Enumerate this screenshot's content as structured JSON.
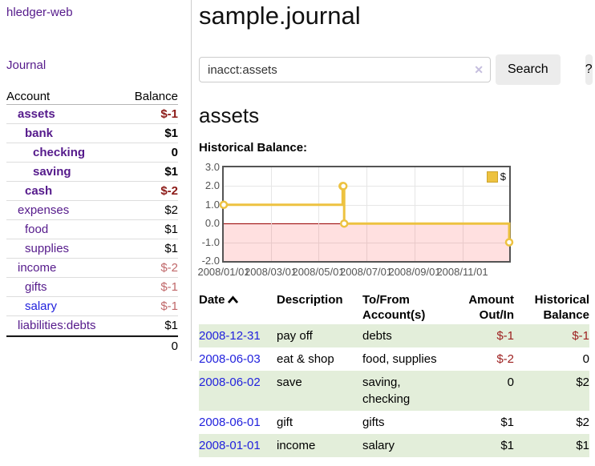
{
  "colors": {
    "link_blue": "#2222dd",
    "link_visited_purple": "#551a8b",
    "negative_strong": "#8c1a17",
    "negative_muted": "#c0686a",
    "negative_table": "#9d1f1f",
    "row_stripe_green": "#e3eeda",
    "chart_line_yellow": "#edc240",
    "chart_zero_line": "#8b0000",
    "chart_negative_fill": "rgba(255,0,0,0.12)",
    "chart_grid": "#e6e6e6",
    "chart_border": "#545454",
    "button_bg": "#ececec",
    "clear_icon_color": "#c5bede"
  },
  "sidebar": {
    "app_title": "hledger-web",
    "journal_link": "Journal",
    "accounts_table": {
      "headers": {
        "account": "Account",
        "balance": "Balance"
      },
      "rows": [
        {
          "name": "assets",
          "depth": 1,
          "balance": "$-1",
          "bold": true,
          "neg": "strong"
        },
        {
          "name": "bank",
          "depth": 2,
          "balance": "$1",
          "bold": true
        },
        {
          "name": "checking",
          "depth": 3,
          "balance": "0",
          "bold": true
        },
        {
          "name": "saving",
          "depth": 3,
          "balance": "$1",
          "bold": true
        },
        {
          "name": "cash",
          "depth": 2,
          "balance": "$-2",
          "bold": true,
          "neg": "strong"
        },
        {
          "name": "expenses",
          "depth": 1,
          "balance": "$2"
        },
        {
          "name": "food",
          "depth": 2,
          "balance": "$1"
        },
        {
          "name": "supplies",
          "depth": 2,
          "balance": "$1"
        },
        {
          "name": "income",
          "depth": 1,
          "balance": "$-2",
          "neg": "light"
        },
        {
          "name": "gifts",
          "depth": 2,
          "balance": "$-1",
          "neg": "light"
        },
        {
          "name": "salary",
          "depth": 2,
          "balance": "$-1",
          "neg": "light",
          "link_color": "blue"
        },
        {
          "name": "liabilities:debts",
          "depth": 1,
          "balance": "$1"
        }
      ],
      "total": "0"
    }
  },
  "main": {
    "title": "sample.journal",
    "search": {
      "value": "inacct:assets",
      "clear_icon": "✕",
      "search_label": "Search",
      "help_label": "?"
    },
    "account_heading": "assets",
    "chart_heading": "Historical Balance:",
    "register_table": {
      "headers": {
        "date": "Date",
        "description": "Description",
        "accounts": "To/From Account(s)",
        "amount": "Amount Out/In",
        "balance": "Historical Balance"
      },
      "rows": [
        {
          "date": "2008-12-31",
          "description": "pay off",
          "accounts": "debts",
          "amount": "$-1",
          "amount_neg": true,
          "balance": "$-1",
          "balance_neg": true
        },
        {
          "date": "2008-06-03",
          "description": "eat & shop",
          "accounts": "food, supplies",
          "amount": "$-2",
          "amount_neg": true,
          "balance": "0",
          "balance_neg": false
        },
        {
          "date": "2008-06-02",
          "description": "save",
          "accounts": "saving, checking",
          "amount": "0",
          "amount_neg": false,
          "balance": "$2",
          "balance_neg": false
        },
        {
          "date": "2008-06-01",
          "description": "gift",
          "accounts": "gifts",
          "amount": "$1",
          "amount_neg": false,
          "balance": "$2",
          "balance_neg": false
        },
        {
          "date": "2008-01-01",
          "description": "income",
          "accounts": "salary",
          "amount": "$1",
          "amount_neg": false,
          "balance": "$1",
          "balance_neg": false
        }
      ]
    }
  },
  "chart_data": {
    "type": "line",
    "title": "Historical Balance",
    "line_style": "step",
    "legend_position": "top-right",
    "negative_region_highlight": true,
    "series": [
      {
        "name": "$",
        "color": "#edc240",
        "points": [
          {
            "date": "2008-01-01",
            "day": 0,
            "value": 1
          },
          {
            "date": "2008-06-01",
            "day": 152,
            "value": 2
          },
          {
            "date": "2008-06-02",
            "day": 153,
            "value": 2
          },
          {
            "date": "2008-06-03",
            "day": 154,
            "value": 0
          },
          {
            "date": "2008-12-31",
            "day": 365,
            "value": -1
          }
        ]
      }
    ],
    "x_axis": {
      "min_day": 0,
      "max_day": 365,
      "ticks": [
        {
          "day": 0,
          "label": "2008/01/01"
        },
        {
          "day": 60,
          "label": "2008/03/01"
        },
        {
          "day": 121,
          "label": "2008/05/01"
        },
        {
          "day": 182,
          "label": "2008/07/01"
        },
        {
          "day": 244,
          "label": "2008/09/01"
        },
        {
          "day": 305,
          "label": "2008/11/01"
        }
      ]
    },
    "y_axis": {
      "min": -2,
      "max": 3,
      "ticks": [
        {
          "value": 3,
          "label": "3.0"
        },
        {
          "value": 2,
          "label": "2.0"
        },
        {
          "value": 1,
          "label": "1.0"
        },
        {
          "value": 0,
          "label": "0.0"
        },
        {
          "value": -1,
          "label": "-1.0"
        },
        {
          "value": -2,
          "label": "-2.0"
        }
      ]
    }
  }
}
